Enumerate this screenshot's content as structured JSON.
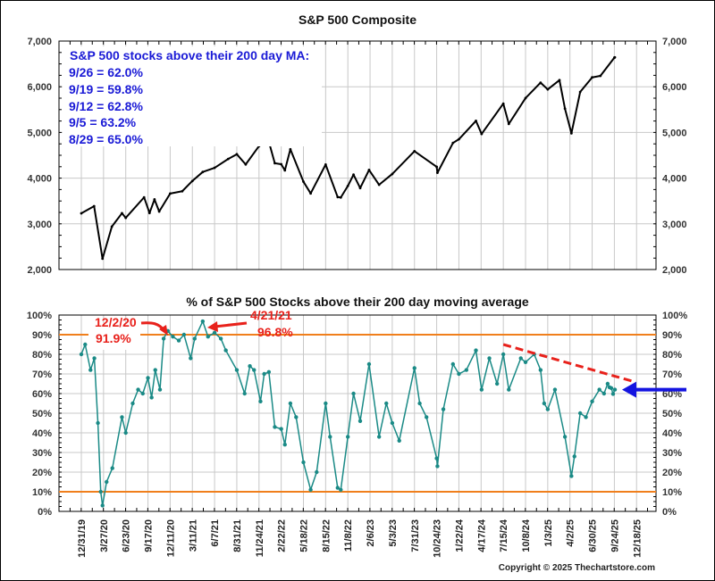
{
  "chart_data": [
    {
      "type": "line",
      "title": "S&P 500 Composite",
      "xlabel": "",
      "ylabel": "",
      "ylim": [
        2000,
        7000
      ],
      "yticks": [
        "2,000",
        "3,000",
        "4,000",
        "5,000",
        "6,000",
        "7,000"
      ],
      "grid": true,
      "series": [
        {
          "name": "S&P 500 Composite",
          "color": "#000000",
          "points": [
            [
              "12/31/19",
              3230
            ],
            [
              "2/19/20",
              3386
            ],
            [
              "3/23/20",
              2237
            ],
            [
              "4/29/20",
              2940
            ],
            [
              "6/8/20",
              3232
            ],
            [
              "6/23/20",
              3131
            ],
            [
              "9/2/20",
              3580
            ],
            [
              "9/23/20",
              3237
            ],
            [
              "10/12/20",
              3534
            ],
            [
              "10/30/20",
              3270
            ],
            [
              "12/11/20",
              3663
            ],
            [
              "1/29/21",
              3714
            ],
            [
              "3/11/21",
              3939
            ],
            [
              "4/21/21",
              4135
            ],
            [
              "6/7/21",
              4226
            ],
            [
              "7/29/21",
              4419
            ],
            [
              "8/31/21",
              4523
            ],
            [
              "10/4/21",
              4300
            ],
            [
              "11/24/21",
              4701
            ],
            [
              "1/3/22",
              4796
            ],
            [
              "1/27/22",
              4326
            ],
            [
              "2/22/22",
              4304
            ],
            [
              "3/8/22",
              4170
            ],
            [
              "3/29/22",
              4632
            ],
            [
              "5/18/22",
              3923
            ],
            [
              "6/16/22",
              3666
            ],
            [
              "8/15/22",
              4297
            ],
            [
              "9/30/22",
              3586
            ],
            [
              "10/12/22",
              3577
            ],
            [
              "11/8/22",
              3828
            ],
            [
              "12/1/22",
              4076
            ],
            [
              "12/28/22",
              3783
            ],
            [
              "2/2/23",
              4179
            ],
            [
              "3/13/23",
              3855
            ],
            [
              "5/3/23",
              4091
            ],
            [
              "7/31/23",
              4589
            ],
            [
              "10/24/23",
              4247
            ],
            [
              "10/27/23",
              4117
            ],
            [
              "12/29/23",
              4770
            ],
            [
              "1/22/24",
              4851
            ],
            [
              "3/28/24",
              5254
            ],
            [
              "4/19/24",
              4967
            ],
            [
              "7/15/24",
              5631
            ],
            [
              "8/5/24",
              5186
            ],
            [
              "10/8/24",
              5751
            ],
            [
              "12/6/24",
              6090
            ],
            [
              "1/3/25",
              5942
            ],
            [
              "2/19/25",
              6144
            ],
            [
              "3/13/25",
              5521
            ],
            [
              "4/8/25",
              4982
            ],
            [
              "5/13/25",
              5886
            ],
            [
              "6/30/25",
              6205
            ],
            [
              "8/1/25",
              6238
            ],
            [
              "9/24/25",
              6637
            ],
            [
              "9/26/25",
              6643
            ]
          ]
        }
      ]
    },
    {
      "type": "line",
      "title": "% of S&P 500 Stocks above their 200 day moving average",
      "xlabel": "",
      "ylabel": "",
      "ylim": [
        0,
        100
      ],
      "yticks": [
        "0%",
        "10%",
        "20%",
        "30%",
        "40%",
        "50%",
        "60%",
        "70%",
        "80%",
        "90%",
        "100%"
      ],
      "grid": true,
      "reference_lines": [
        {
          "value": 90,
          "color": "#f07f1c"
        },
        {
          "value": 10,
          "color": "#f07f1c"
        }
      ],
      "series": [
        {
          "name": "% above 200 day MA",
          "color": "#1a8a86",
          "points": [
            [
              "12/31/19",
              80
            ],
            [
              "1/15/20",
              85
            ],
            [
              "2/5/20",
              72
            ],
            [
              "2/20/20",
              78
            ],
            [
              "3/5/20",
              45
            ],
            [
              "3/16/20",
              10
            ],
            [
              "3/23/20",
              3
            ],
            [
              "4/8/20",
              15
            ],
            [
              "5/1/20",
              22
            ],
            [
              "6/8/20",
              48
            ],
            [
              "6/23/20",
              40
            ],
            [
              "7/20/20",
              55
            ],
            [
              "8/10/20",
              62
            ],
            [
              "8/28/20",
              60
            ],
            [
              "9/17/20",
              68
            ],
            [
              "10/1/20",
              58
            ],
            [
              "10/15/20",
              72
            ],
            [
              "11/2/20",
              62
            ],
            [
              "11/16/20",
              88
            ],
            [
              "12/2/20",
              91.9
            ],
            [
              "12/22/20",
              89
            ],
            [
              "1/15/21",
              87
            ],
            [
              "2/5/21",
              90
            ],
            [
              "3/4/21",
              78
            ],
            [
              "3/20/21",
              88
            ],
            [
              "4/21/21",
              96.8
            ],
            [
              "5/12/21",
              89
            ],
            [
              "6/7/21",
              91
            ],
            [
              "7/1/21",
              88
            ],
            [
              "7/20/21",
              82
            ],
            [
              "8/31/21",
              72
            ],
            [
              "9/30/21",
              60
            ],
            [
              "10/20/21",
              74
            ],
            [
              "11/5/21",
              72
            ],
            [
              "11/30/21",
              56
            ],
            [
              "12/15/21",
              70
            ],
            [
              "1/3/22",
              71
            ],
            [
              "1/27/22",
              43
            ],
            [
              "2/22/22",
              42
            ],
            [
              "3/8/22",
              34
            ],
            [
              "3/29/22",
              55
            ],
            [
              "4/20/22",
              48
            ],
            [
              "5/18/22",
              25
            ],
            [
              "6/16/22",
              11
            ],
            [
              "7/10/22",
              20
            ],
            [
              "8/15/22",
              55
            ],
            [
              "9/1/22",
              38
            ],
            [
              "9/30/22",
              12
            ],
            [
              "10/12/22",
              11
            ],
            [
              "11/8/22",
              38
            ],
            [
              "12/1/22",
              60
            ],
            [
              "12/28/22",
              46
            ],
            [
              "2/2/23",
              75
            ],
            [
              "3/13/23",
              38
            ],
            [
              "4/10/23",
              55
            ],
            [
              "5/3/23",
              45
            ],
            [
              "5/31/23",
              36
            ],
            [
              "7/31/23",
              73
            ],
            [
              "8/20/23",
              55
            ],
            [
              "9/15/23",
              48
            ],
            [
              "10/24/23",
              27
            ],
            [
              "10/27/23",
              23
            ],
            [
              "11/20/23",
              52
            ],
            [
              "12/29/23",
              75
            ],
            [
              "1/22/24",
              70
            ],
            [
              "2/20/24",
              72
            ],
            [
              "3/28/24",
              82
            ],
            [
              "4/19/24",
              62
            ],
            [
              "5/20/24",
              78
            ],
            [
              "6/20/24",
              65
            ],
            [
              "7/15/24",
              80
            ],
            [
              "8/5/24",
              62
            ],
            [
              "9/20/24",
              78
            ],
            [
              "10/8/24",
              76
            ],
            [
              "11/11/24",
              80
            ],
            [
              "12/6/24",
              72
            ],
            [
              "12/20/24",
              55
            ],
            [
              "1/3/25",
              52
            ],
            [
              "2/1/25",
              62
            ],
            [
              "3/13/25",
              38
            ],
            [
              "4/8/25",
              18
            ],
            [
              "4/20/25",
              28
            ],
            [
              "5/13/25",
              50
            ],
            [
              "6/5/25",
              48
            ],
            [
              "6/30/25",
              56
            ],
            [
              "7/28/25",
              62
            ],
            [
              "8/15/25",
              60
            ],
            [
              "8/29/25",
              65
            ],
            [
              "9/5/25",
              63.2
            ],
            [
              "9/12/25",
              62.8
            ],
            [
              "9/19/25",
              59.8
            ],
            [
              "9/26/25",
              62
            ]
          ]
        }
      ]
    }
  ],
  "x_axis": {
    "tick_labels": [
      "12/31/19",
      "3/27/20",
      "6/23/20",
      "9/17/20",
      "12/11/20",
      "3/11/21",
      "6/7/21",
      "8/31/21",
      "11/24/21",
      "2/22/22",
      "5/18/22",
      "8/15/22",
      "11/8/22",
      "2/6/23",
      "5/3/23",
      "7/31/23",
      "10/24/23",
      "1/22/24",
      "4/17/24",
      "7/15/24",
      "10/8/24",
      "1/3/25",
      "4/2/25",
      "6/30/25",
      "9/24/25",
      "12/18/25"
    ]
  },
  "info_box": {
    "heading": "S&P 500 stocks above their 200 day MA:",
    "lines": [
      "9/26 = 62.0%",
      "9/19 = 59.8%",
      "9/12 = 62.8%",
      "9/5 = 63.2%",
      "8/29 = 65.0%"
    ],
    "color": "#1a1ad6"
  },
  "annotations": {
    "peak1_date": "12/2/20",
    "peak1_value": "91.9%",
    "peak2_date": "4/21/21",
    "peak2_value": "96.8%",
    "color": "#e8211b",
    "trendline": {
      "from": [
        "7/15/24",
        85
      ],
      "to": [
        "12/10/25",
        66
      ],
      "style": "dashed",
      "color": "#e8211b"
    },
    "current_arrow": {
      "value": 62,
      "color": "#1414e0"
    }
  },
  "colors": {
    "grid": "#c8c8c8",
    "ref_line": "#f07f1c",
    "breadth_line": "#1a8a86",
    "price_line": "#000000"
  },
  "copyright": "Copyright © 2025 Thechartstore.com"
}
